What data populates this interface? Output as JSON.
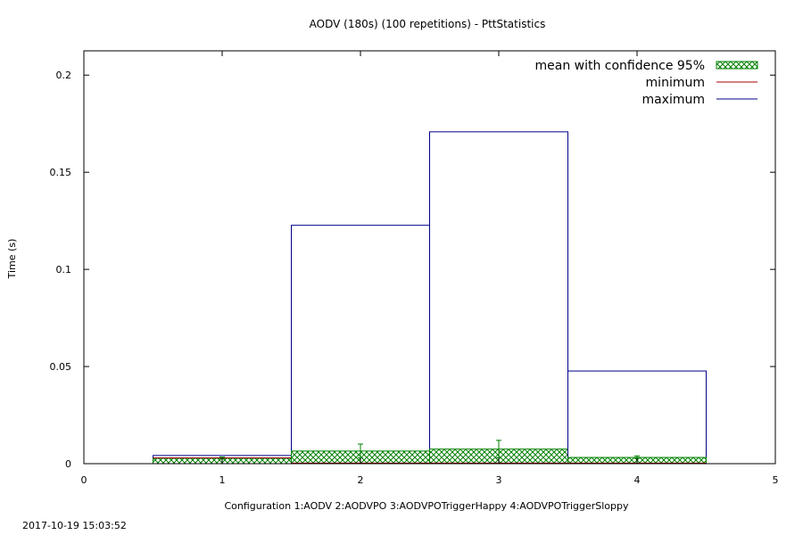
{
  "chart_data": {
    "type": "bar",
    "title": "AODV (180s) (100 repetitions) - PttStatistics",
    "xlabel": "Configuration 1:AODV  2:AODVPO  3:AODVPOTriggerHappy  4:AODVPOTriggerSloppy",
    "ylabel": "Time (s)",
    "xlim": [
      0,
      5
    ],
    "ylim": [
      0,
      0.2125
    ],
    "x_ticks": [
      0,
      1,
      2,
      3,
      4,
      5
    ],
    "y_ticks": [
      0,
      0.05,
      0.1,
      0.15,
      0.2
    ],
    "x_tick_labels": [
      "0",
      "1",
      "2",
      "3",
      "4",
      "5"
    ],
    "y_tick_labels": [
      "0",
      "0.05",
      "0.1",
      "0.15",
      "0.2"
    ],
    "grid": false,
    "legend_position": "top-right",
    "bar_width": 1.0,
    "categories": [
      1,
      2,
      3,
      4
    ],
    "series": [
      {
        "name": "mean with confidence 95%",
        "style": "crosshatch",
        "color": "#008000",
        "values": [
          0.0028,
          0.0065,
          0.0075,
          0.0032
        ],
        "ci_low": [
          0.0024,
          0.003,
          0.003,
          0.0028
        ],
        "ci_high": [
          0.0034,
          0.0101,
          0.012,
          0.004
        ]
      },
      {
        "name": "minimum",
        "style": "line",
        "color": "#a00000",
        "values": [
          0.003,
          0.0003,
          0.0003,
          0.0003
        ]
      },
      {
        "name": "maximum",
        "style": "line",
        "color": "#00008b",
        "values": [
          0.0042,
          0.1227,
          0.1708,
          0.0477
        ]
      }
    ]
  },
  "footer": {
    "timestamp": "2017-10-19 15:03:52"
  }
}
